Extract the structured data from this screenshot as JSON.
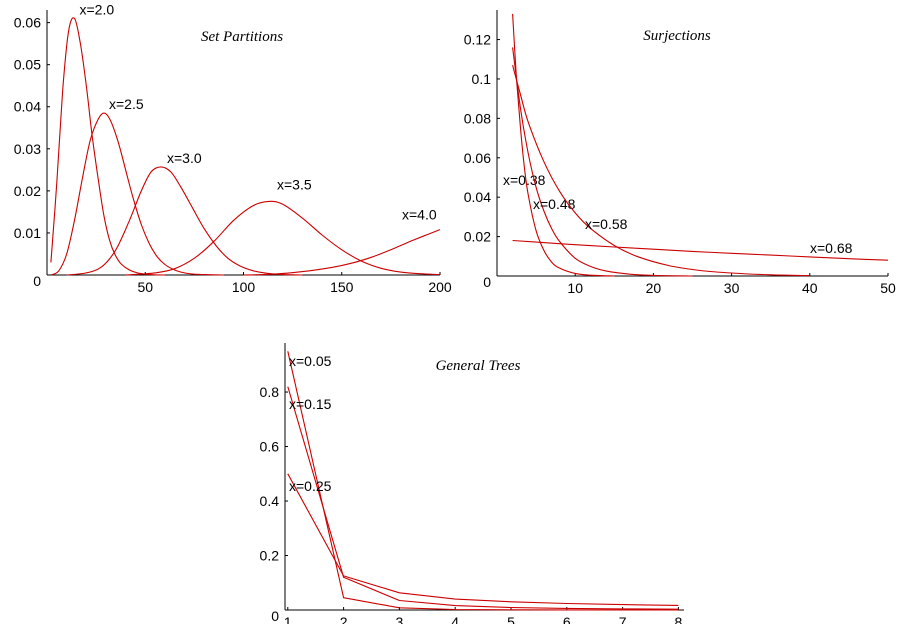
{
  "series_color": "#cc0000",
  "chart_data": [
    {
      "type": "line",
      "title": "Set Partitions",
      "xlabel": "",
      "ylabel": "",
      "xlim": [
        0,
        200
      ],
      "ylim": [
        0,
        0.063
      ],
      "xticks": [
        50,
        100,
        150,
        200
      ],
      "xtick_labels": [
        "50",
        "100",
        "150",
        "200"
      ],
      "yticks": [
        0,
        0.01,
        0.02,
        0.03,
        0.04,
        0.05,
        0.06
      ],
      "ytick_labels": [
        "0",
        "0.01",
        "0.02",
        "0.03",
        "0.04",
        "0.05",
        "0.06"
      ],
      "grid": false,
      "series": [
        {
          "name": "x=2.0",
          "x": [
            2,
            5,
            8,
            11,
            14,
            17,
            20,
            23,
            26,
            29,
            32,
            35,
            38,
            42,
            46,
            50,
            55,
            60
          ],
          "y": [
            0.003,
            0.022,
            0.044,
            0.058,
            0.061,
            0.055,
            0.045,
            0.033,
            0.023,
            0.014,
            0.008,
            0.0045,
            0.0025,
            0.0012,
            0.0005,
            0.0002,
            5e-05,
            0
          ]
        },
        {
          "name": "x=2.5",
          "x": [
            2,
            6,
            10,
            14,
            18,
            22,
            26,
            29,
            32,
            36,
            40,
            44,
            48,
            52,
            56,
            60,
            65,
            70,
            75,
            80,
            90
          ],
          "y": [
            0,
            0.001,
            0.005,
            0.013,
            0.023,
            0.032,
            0.037,
            0.0385,
            0.037,
            0.032,
            0.025,
            0.018,
            0.012,
            0.0075,
            0.0044,
            0.0025,
            0.0012,
            0.0005,
            0.0002,
            0.0001,
            0
          ]
        },
        {
          "name": "x=3.0",
          "x": [
            10,
            20,
            28,
            35,
            42,
            48,
            53,
            58,
            63,
            68,
            74,
            80,
            86,
            92,
            98,
            105,
            112,
            120,
            130
          ],
          "y": [
            0,
            0.0005,
            0.002,
            0.006,
            0.013,
            0.02,
            0.0245,
            0.0257,
            0.0245,
            0.021,
            0.016,
            0.011,
            0.007,
            0.004,
            0.0022,
            0.001,
            0.0004,
            0.0001,
            0
          ]
        },
        {
          "name": "x=3.5",
          "x": [
            40,
            55,
            65,
            75,
            85,
            95,
            105,
            113,
            120,
            130,
            140,
            150,
            160,
            170,
            180,
            190,
            200
          ],
          "y": [
            0,
            0.0005,
            0.0015,
            0.004,
            0.008,
            0.013,
            0.0165,
            0.0175,
            0.0168,
            0.0135,
            0.0095,
            0.006,
            0.0033,
            0.0016,
            0.0007,
            0.0003,
            0.0001
          ]
        },
        {
          "name": "x=4.0",
          "x": [
            100,
            115,
            130,
            145,
            155,
            165,
            175,
            185,
            193,
            200
          ],
          "y": [
            0,
            0.0002,
            0.0008,
            0.0018,
            0.0028,
            0.0042,
            0.006,
            0.008,
            0.0095,
            0.0108
          ]
        }
      ]
    },
    {
      "type": "line",
      "title": "Surjections",
      "xlabel": "",
      "ylabel": "",
      "xlim": [
        0,
        50
      ],
      "ylim": [
        0,
        0.135
      ],
      "xticks": [
        10,
        20,
        30,
        40,
        50
      ],
      "xtick_labels": [
        "10",
        "20",
        "30",
        "40",
        "50"
      ],
      "yticks": [
        0,
        0.02,
        0.04,
        0.06,
        0.08,
        0.1,
        0.12
      ],
      "ytick_labels": [
        "0",
        "0.02",
        "0.04",
        "0.06",
        "0.08",
        "0.1",
        "0.12"
      ],
      "grid": false,
      "series": [
        {
          "name": "x=0.38",
          "x": [
            2,
            2.5,
            3,
            3.5,
            4,
            5,
            6,
            7,
            8,
            10,
            12,
            15
          ],
          "y": [
            0.133,
            0.1,
            0.075,
            0.055,
            0.041,
            0.023,
            0.013,
            0.007,
            0.004,
            0.0013,
            0.0004,
            0
          ]
        },
        {
          "name": "x=0.48",
          "x": [
            2,
            3,
            4,
            5,
            6,
            7,
            8,
            10,
            12,
            14,
            17,
            20,
            25
          ],
          "y": [
            0.116,
            0.085,
            0.062,
            0.045,
            0.033,
            0.024,
            0.0175,
            0.009,
            0.0048,
            0.0025,
            0.0009,
            0.0003,
            0
          ]
        },
        {
          "name": "x=0.58",
          "x": [
            2,
            3,
            4,
            6,
            8,
            10,
            12,
            15,
            18,
            22,
            26,
            30,
            35,
            40
          ],
          "y": [
            0.107,
            0.092,
            0.078,
            0.058,
            0.043,
            0.032,
            0.024,
            0.0155,
            0.0098,
            0.0053,
            0.0028,
            0.0015,
            0.0006,
            0.0002
          ]
        },
        {
          "name": "x=0.68",
          "x": [
            2,
            5,
            10,
            15,
            20,
            25,
            30,
            35,
            40,
            45,
            50
          ],
          "y": [
            0.018,
            0.0172,
            0.0159,
            0.0147,
            0.0136,
            0.0125,
            0.0115,
            0.0106,
            0.0097,
            0.0088,
            0.008
          ]
        }
      ]
    },
    {
      "type": "line",
      "title": "General Trees",
      "xlabel": "",
      "ylabel": "",
      "xlim": [
        0.95,
        8.1
      ],
      "ylim": [
        0,
        0.98
      ],
      "xticks": [
        1,
        2,
        3,
        4,
        5,
        6,
        7,
        8
      ],
      "xtick_labels": [
        "1",
        "2",
        "3",
        "4",
        "5",
        "6",
        "7",
        "8"
      ],
      "yticks": [
        0,
        0.2,
        0.4,
        0.6,
        0.8
      ],
      "ytick_labels": [
        "0",
        "0.2",
        "0.4",
        "0.6",
        "0.8"
      ],
      "grid": false,
      "series": [
        {
          "name": "x=0.05",
          "x": [
            1,
            2,
            3,
            4,
            5,
            6,
            7,
            8
          ],
          "y": [
            0.95,
            0.045,
            0.008,
            0.002,
            0.0008,
            0.0004,
            0.0002,
            0.0001
          ]
        },
        {
          "name": "x=0.15",
          "x": [
            1,
            2,
            3,
            4,
            5,
            6,
            7,
            8
          ],
          "y": [
            0.82,
            0.12,
            0.035,
            0.016,
            0.009,
            0.006,
            0.004,
            0.003
          ]
        },
        {
          "name": "x=0.25",
          "x": [
            1,
            2,
            3,
            4,
            5,
            6,
            7,
            8
          ],
          "y": [
            0.5,
            0.125,
            0.063,
            0.04,
            0.03,
            0.024,
            0.02,
            0.017
          ]
        }
      ]
    }
  ]
}
